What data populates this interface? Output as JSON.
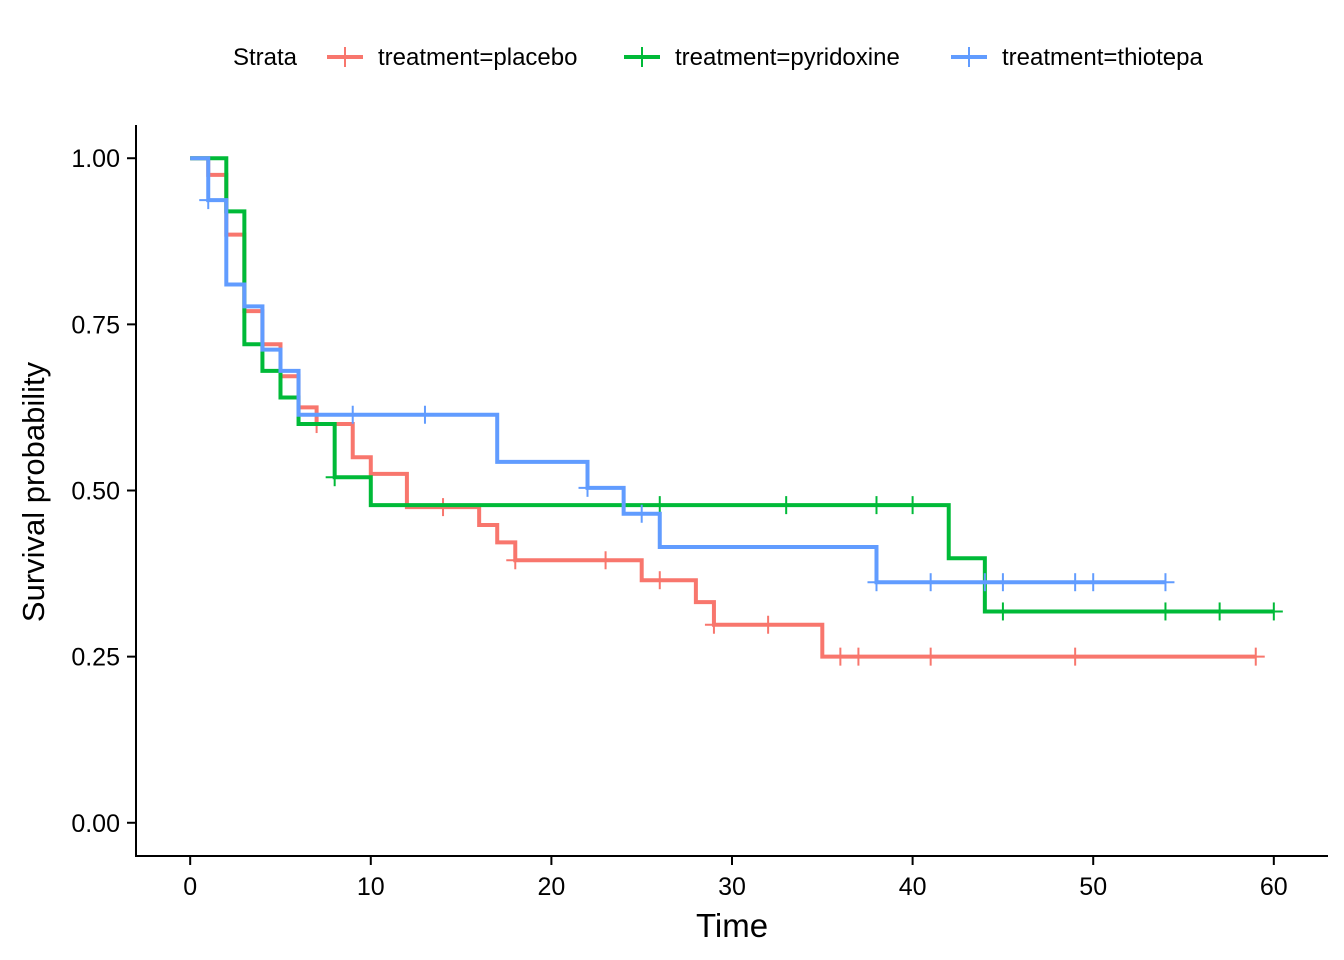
{
  "chart_data": {
    "type": "line",
    "xlabel": "Time",
    "ylabel": "Survival probability",
    "xlim": [
      -3,
      63
    ],
    "ylim": [
      -0.05,
      1.05
    ],
    "x_ticks": [
      0,
      10,
      20,
      30,
      40,
      50,
      60
    ],
    "x_tick_labels": [
      "0",
      "10",
      "20",
      "30",
      "40",
      "50",
      "60"
    ],
    "y_ticks": [
      0,
      0.25,
      0.5,
      0.75,
      1.0
    ],
    "y_tick_labels": [
      "0.00",
      "0.25",
      "0.50",
      "0.75",
      "1.00"
    ],
    "grid": false,
    "legend": {
      "title": "Strata",
      "position": "top"
    },
    "series": [
      {
        "name": "treatment=placebo",
        "color": "#F8766D",
        "x": [
          0,
          1,
          2,
          3,
          4,
          5,
          6,
          7,
          9,
          10,
          12,
          16,
          17,
          18,
          25,
          28,
          29,
          35,
          59
        ],
        "y": [
          1.0,
          0.975,
          0.885,
          0.77,
          0.72,
          0.672,
          0.625,
          0.6,
          0.55,
          0.525,
          0.475,
          0.448,
          0.422,
          0.395,
          0.365,
          0.332,
          0.298,
          0.25,
          0.25
        ],
        "censor_x": [
          7,
          14,
          18,
          23,
          26,
          29,
          32,
          36,
          37,
          41,
          49,
          59
        ],
        "censor_y": [
          0.6,
          0.475,
          0.395,
          0.395,
          0.365,
          0.298,
          0.298,
          0.25,
          0.25,
          0.25,
          0.25,
          0.25
        ]
      },
      {
        "name": "treatment=pyridoxine",
        "color": "#00BA38",
        "x": [
          0,
          2,
          3,
          4,
          5,
          6,
          8,
          10,
          42,
          44,
          60
        ],
        "y": [
          1.0,
          0.92,
          0.72,
          0.68,
          0.64,
          0.6,
          0.52,
          0.478,
          0.398,
          0.318,
          0.318
        ],
        "censor_x": [
          8,
          26,
          33,
          38,
          40,
          45,
          54,
          57,
          60
        ],
        "censor_y": [
          0.52,
          0.478,
          0.478,
          0.478,
          0.478,
          0.318,
          0.318,
          0.318,
          0.318
        ]
      },
      {
        "name": "treatment=thiotepa",
        "color": "#619CFF",
        "x": [
          0,
          1,
          2,
          3,
          4,
          5,
          6,
          17,
          22,
          24,
          26,
          38,
          54
        ],
        "y": [
          1.0,
          0.937,
          0.81,
          0.777,
          0.712,
          0.68,
          0.614,
          0.543,
          0.504,
          0.465,
          0.415,
          0.362,
          0.362
        ],
        "censor_x": [
          1,
          9,
          13,
          22,
          25,
          38,
          41,
          44,
          45,
          49,
          50,
          54
        ],
        "censor_y": [
          0.937,
          0.614,
          0.614,
          0.504,
          0.465,
          0.362,
          0.362,
          0.362,
          0.362,
          0.362,
          0.362,
          0.362
        ]
      }
    ]
  }
}
